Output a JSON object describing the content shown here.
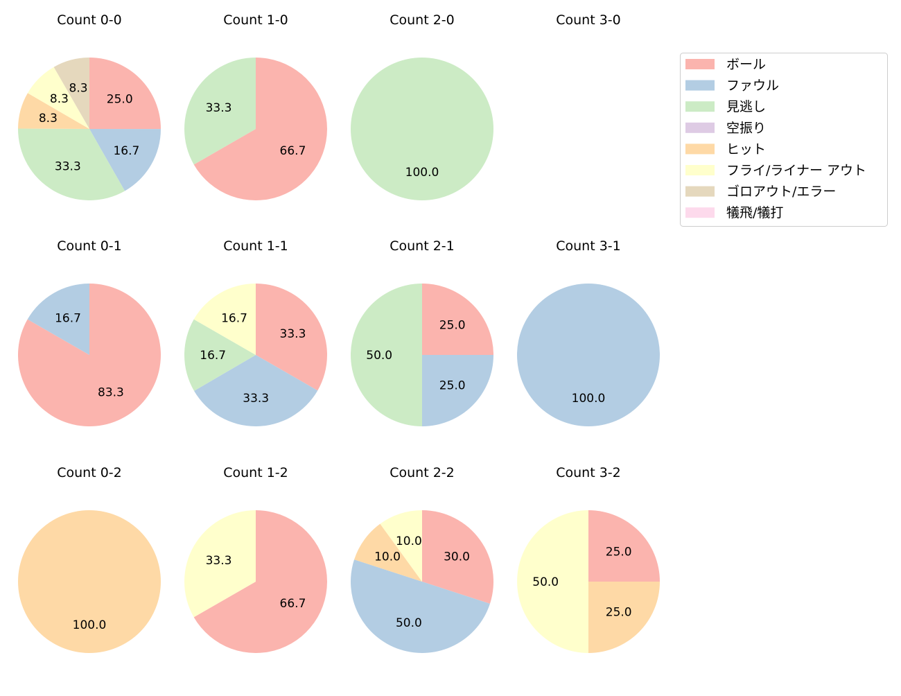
{
  "chart_data": {
    "type": "pie",
    "start_angle_deg": 90,
    "direction": "clockwise",
    "legend": {
      "placement": "top-right",
      "entries": [
        "ボール",
        "ファウル",
        "見逃し",
        "空振り",
        "ヒット",
        "フライ/ライナー アウト",
        "ゴロアウト/エラー",
        "犠飛/犠打"
      ],
      "colors": [
        "#fbb4ae",
        "#b3cde3",
        "#ccebc5",
        "#decbe4",
        "#fed9a6",
        "#ffffcc",
        "#e5d8bd",
        "#fddaec"
      ]
    },
    "charts": [
      {
        "title": "Count 0-0",
        "values": [
          25.0,
          16.7,
          33.3,
          0,
          8.3,
          8.3,
          8.3,
          0
        ]
      },
      {
        "title": "Count 1-0",
        "values": [
          66.7,
          0,
          33.3,
          0,
          0,
          0,
          0,
          0
        ]
      },
      {
        "title": "Count 2-0",
        "values": [
          0,
          0,
          100.0,
          0,
          0,
          0,
          0,
          0
        ]
      },
      {
        "title": "Count 3-0",
        "values": [
          0,
          0,
          0,
          0,
          0,
          0,
          0,
          0
        ]
      },
      {
        "title": "Count 0-1",
        "values": [
          83.3,
          16.7,
          0,
          0,
          0,
          0,
          0,
          0
        ]
      },
      {
        "title": "Count 1-1",
        "values": [
          33.3,
          33.3,
          16.7,
          0,
          0,
          16.7,
          0,
          0
        ]
      },
      {
        "title": "Count 2-1",
        "values": [
          25.0,
          25.0,
          50.0,
          0,
          0,
          0,
          0,
          0
        ]
      },
      {
        "title": "Count 3-1",
        "values": [
          0,
          100.0,
          0,
          0,
          0,
          0,
          0,
          0
        ]
      },
      {
        "title": "Count 0-2",
        "values": [
          0,
          0,
          0,
          0,
          100.0,
          0,
          0,
          0
        ]
      },
      {
        "title": "Count 1-2",
        "values": [
          66.7,
          0,
          0,
          0,
          0,
          33.3,
          0,
          0
        ]
      },
      {
        "title": "Count 2-2",
        "values": [
          30.0,
          50.0,
          0,
          0,
          10.0,
          10.0,
          0,
          0
        ]
      },
      {
        "title": "Count 3-2",
        "values": [
          25.0,
          0,
          0,
          0,
          25.0,
          50.0,
          0,
          0
        ]
      }
    ]
  }
}
